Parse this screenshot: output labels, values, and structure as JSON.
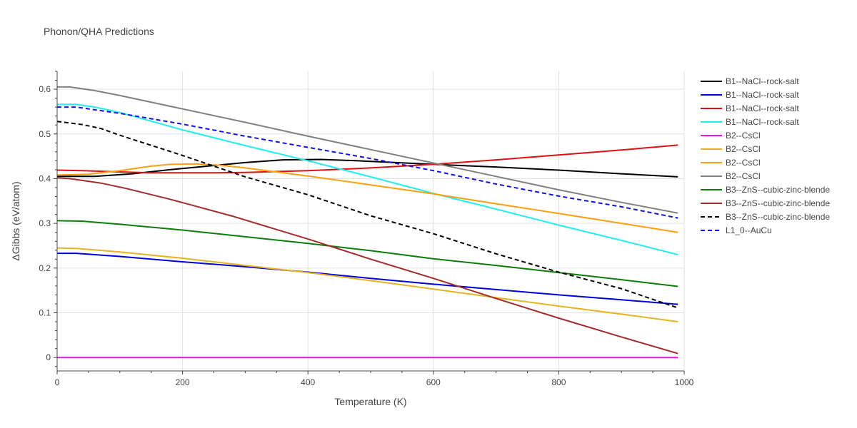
{
  "chart_data": {
    "type": "line",
    "title": "Phonon/QHA Predictions",
    "xlabel": "Temperature (K)",
    "ylabel": "ΔGibbs (eV/atom)",
    "xlim": [
      0,
      1000
    ],
    "ylim": [
      -0.03,
      0.64
    ],
    "xticks": [
      0,
      200,
      400,
      600,
      800,
      1000
    ],
    "yticks": [
      0,
      0.1,
      0.2,
      0.3,
      0.4,
      0.5,
      0.6
    ],
    "grid": true,
    "legend_position": "right",
    "series": [
      {
        "name": "B1--NaCl--rock-salt",
        "color": "#000000",
        "dash": "solid",
        "x": [
          0,
          60,
          120,
          180,
          240,
          300,
          360,
          420,
          480,
          540,
          600,
          700,
          800,
          900,
          990
        ],
        "y": [
          0.405,
          0.405,
          0.411,
          0.42,
          0.428,
          0.436,
          0.442,
          0.443,
          0.44,
          0.436,
          0.432,
          0.426,
          0.419,
          0.411,
          0.404
        ]
      },
      {
        "name": "B1--NaCl--rock-salt",
        "color": "#0000dd",
        "dash": "solid",
        "x": [
          0,
          30,
          100,
          200,
          300,
          400,
          500,
          600,
          700,
          800,
          900,
          990
        ],
        "y": [
          0.233,
          0.233,
          0.226,
          0.214,
          0.203,
          0.191,
          0.177,
          0.164,
          0.152,
          0.14,
          0.129,
          0.119
        ]
      },
      {
        "name": "B1--NaCl--rock-salt",
        "color": "#dd1111",
        "dash": "solid",
        "x": [
          0,
          40,
          100,
          150,
          200,
          250,
          300,
          400,
          500,
          600,
          700,
          800,
          900,
          990
        ],
        "y": [
          0.419,
          0.418,
          0.415,
          0.413,
          0.413,
          0.413,
          0.414,
          0.418,
          0.424,
          0.432,
          0.442,
          0.453,
          0.464,
          0.475
        ]
      },
      {
        "name": "B1--NaCl--rock-salt",
        "color": "#22eeee",
        "dash": "solid",
        "x": [
          0,
          30,
          60,
          100,
          200,
          300,
          400,
          500,
          600,
          700,
          800,
          900,
          990
        ],
        "y": [
          0.566,
          0.566,
          0.56,
          0.548,
          0.509,
          0.474,
          0.44,
          0.404,
          0.367,
          0.332,
          0.296,
          0.262,
          0.23
        ]
      },
      {
        "name": "B2--CsCl",
        "color": "#ee11ee",
        "dash": "solid",
        "x": [
          0,
          990
        ],
        "y": [
          0.0,
          0.0
        ]
      },
      {
        "name": "B2--CsCl",
        "color": "#e6b422",
        "dash": "solid",
        "x": [
          0,
          30,
          100,
          200,
          300,
          400,
          500,
          600,
          700,
          800,
          900,
          990
        ],
        "y": [
          0.245,
          0.244,
          0.236,
          0.222,
          0.206,
          0.19,
          0.172,
          0.153,
          0.134,
          0.115,
          0.097,
          0.08
        ]
      },
      {
        "name": "B2--CsCl",
        "color": "#ff9f10",
        "dash": "solid",
        "x": [
          0,
          50,
          100,
          150,
          180,
          220,
          260,
          300,
          400,
          500,
          600,
          700,
          800,
          900,
          990
        ],
        "y": [
          0.408,
          0.41,
          0.418,
          0.428,
          0.432,
          0.433,
          0.43,
          0.424,
          0.406,
          0.386,
          0.366,
          0.344,
          0.322,
          0.3,
          0.28
        ]
      },
      {
        "name": "B2--CsCl",
        "color": "#808080",
        "dash": "solid",
        "x": [
          0,
          20,
          60,
          100,
          200,
          300,
          400,
          500,
          600,
          700,
          800,
          900,
          990
        ],
        "y": [
          0.605,
          0.605,
          0.597,
          0.586,
          0.556,
          0.526,
          0.495,
          0.465,
          0.435,
          0.405,
          0.375,
          0.347,
          0.323
        ]
      },
      {
        "name": "B3--ZnS--cubic-zinc-blende",
        "color": "#0a7d0a",
        "dash": "solid",
        "x": [
          0,
          40,
          100,
          200,
          300,
          400,
          500,
          600,
          700,
          800,
          900,
          990
        ],
        "y": [
          0.306,
          0.305,
          0.298,
          0.285,
          0.27,
          0.255,
          0.239,
          0.221,
          0.206,
          0.19,
          0.174,
          0.159
        ]
      },
      {
        "name": "B3--ZnS--cubic-zinc-blende",
        "color": "#a52a2a",
        "dash": "solid",
        "x": [
          0,
          20,
          70,
          110,
          180,
          280,
          400,
          500,
          600,
          700,
          800,
          900,
          990
        ],
        "y": [
          0.402,
          0.4,
          0.39,
          0.378,
          0.354,
          0.316,
          0.265,
          0.22,
          0.177,
          0.132,
          0.088,
          0.046,
          0.009
        ]
      },
      {
        "name": "B3--ZnS--cubic-zinc-blende",
        "color": "#000000",
        "dash": "dashed",
        "x": [
          0,
          40,
          70,
          100,
          200,
          300,
          400,
          500,
          600,
          700,
          800,
          900,
          990
        ],
        "y": [
          0.528,
          0.521,
          0.512,
          0.497,
          0.452,
          0.404,
          0.364,
          0.317,
          0.277,
          0.232,
          0.191,
          0.154,
          0.111
        ]
      },
      {
        "name": "L1_0--AuCu",
        "color": "#1111ee",
        "dash": "dashed",
        "x": [
          0,
          30,
          100,
          200,
          300,
          400,
          500,
          600,
          700,
          800,
          900,
          990
        ],
        "y": [
          0.56,
          0.56,
          0.546,
          0.522,
          0.495,
          0.47,
          0.445,
          0.418,
          0.388,
          0.361,
          0.337,
          0.312
        ]
      }
    ]
  }
}
